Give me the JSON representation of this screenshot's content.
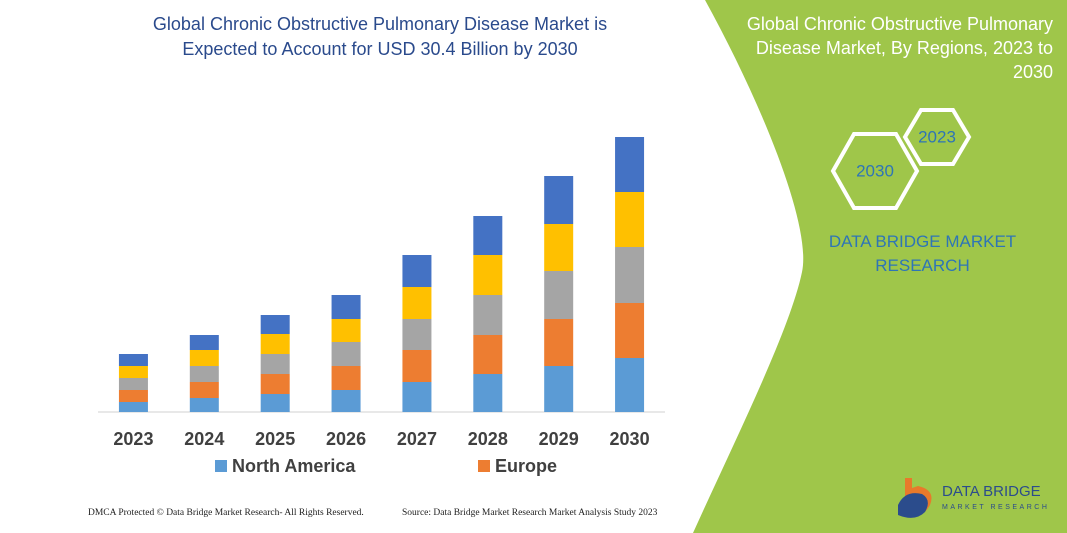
{
  "chart_data": {
    "type": "bar",
    "title": "Global Chronic Obstructive Pulmonary Disease Market is Expected to Account for USD 30.4 Billion by 2030",
    "categories": [
      "2023",
      "2024",
      "2025",
      "2026",
      "2027",
      "2028",
      "2029",
      "2030"
    ],
    "series": [
      {
        "name": "North America",
        "color": "#5b9bd5",
        "values": [
          10,
          14,
          18,
          22,
          30,
          38,
          46,
          54
        ]
      },
      {
        "name": "Europe",
        "color": "#ed7d31",
        "values": [
          12,
          16,
          20,
          24,
          32,
          39,
          47,
          55
        ]
      },
      {
        "color": "#a5a5a5",
        "values": [
          12,
          16,
          20,
          24,
          31,
          40,
          48,
          56
        ]
      },
      {
        "color": "#ffc000",
        "values": [
          12,
          16,
          20,
          23,
          32,
          40,
          47,
          55
        ]
      },
      {
        "color": "#4472c4",
        "values": [
          12,
          15,
          19,
          24,
          32,
          39,
          48,
          55
        ]
      }
    ],
    "ylim": [
      0,
      300
    ],
    "stacked": true
  },
  "panel": {
    "title": "Global Chronic Obstructive Pulmonary Disease Market, By Regions, 2023 to 2030",
    "hex_labels": [
      "2030",
      "2023"
    ],
    "brand": "DATA BRIDGE MARKET RESEARCH"
  },
  "logo": {
    "name": "DATA BRIDGE",
    "tagline": "MARKET RESEARCH"
  },
  "footer": {
    "left": "DMCA Protected © Data Bridge Market Research- All Rights Reserved.",
    "right": "Source: Data Bridge Market Research Market Analysis Study 2023"
  }
}
